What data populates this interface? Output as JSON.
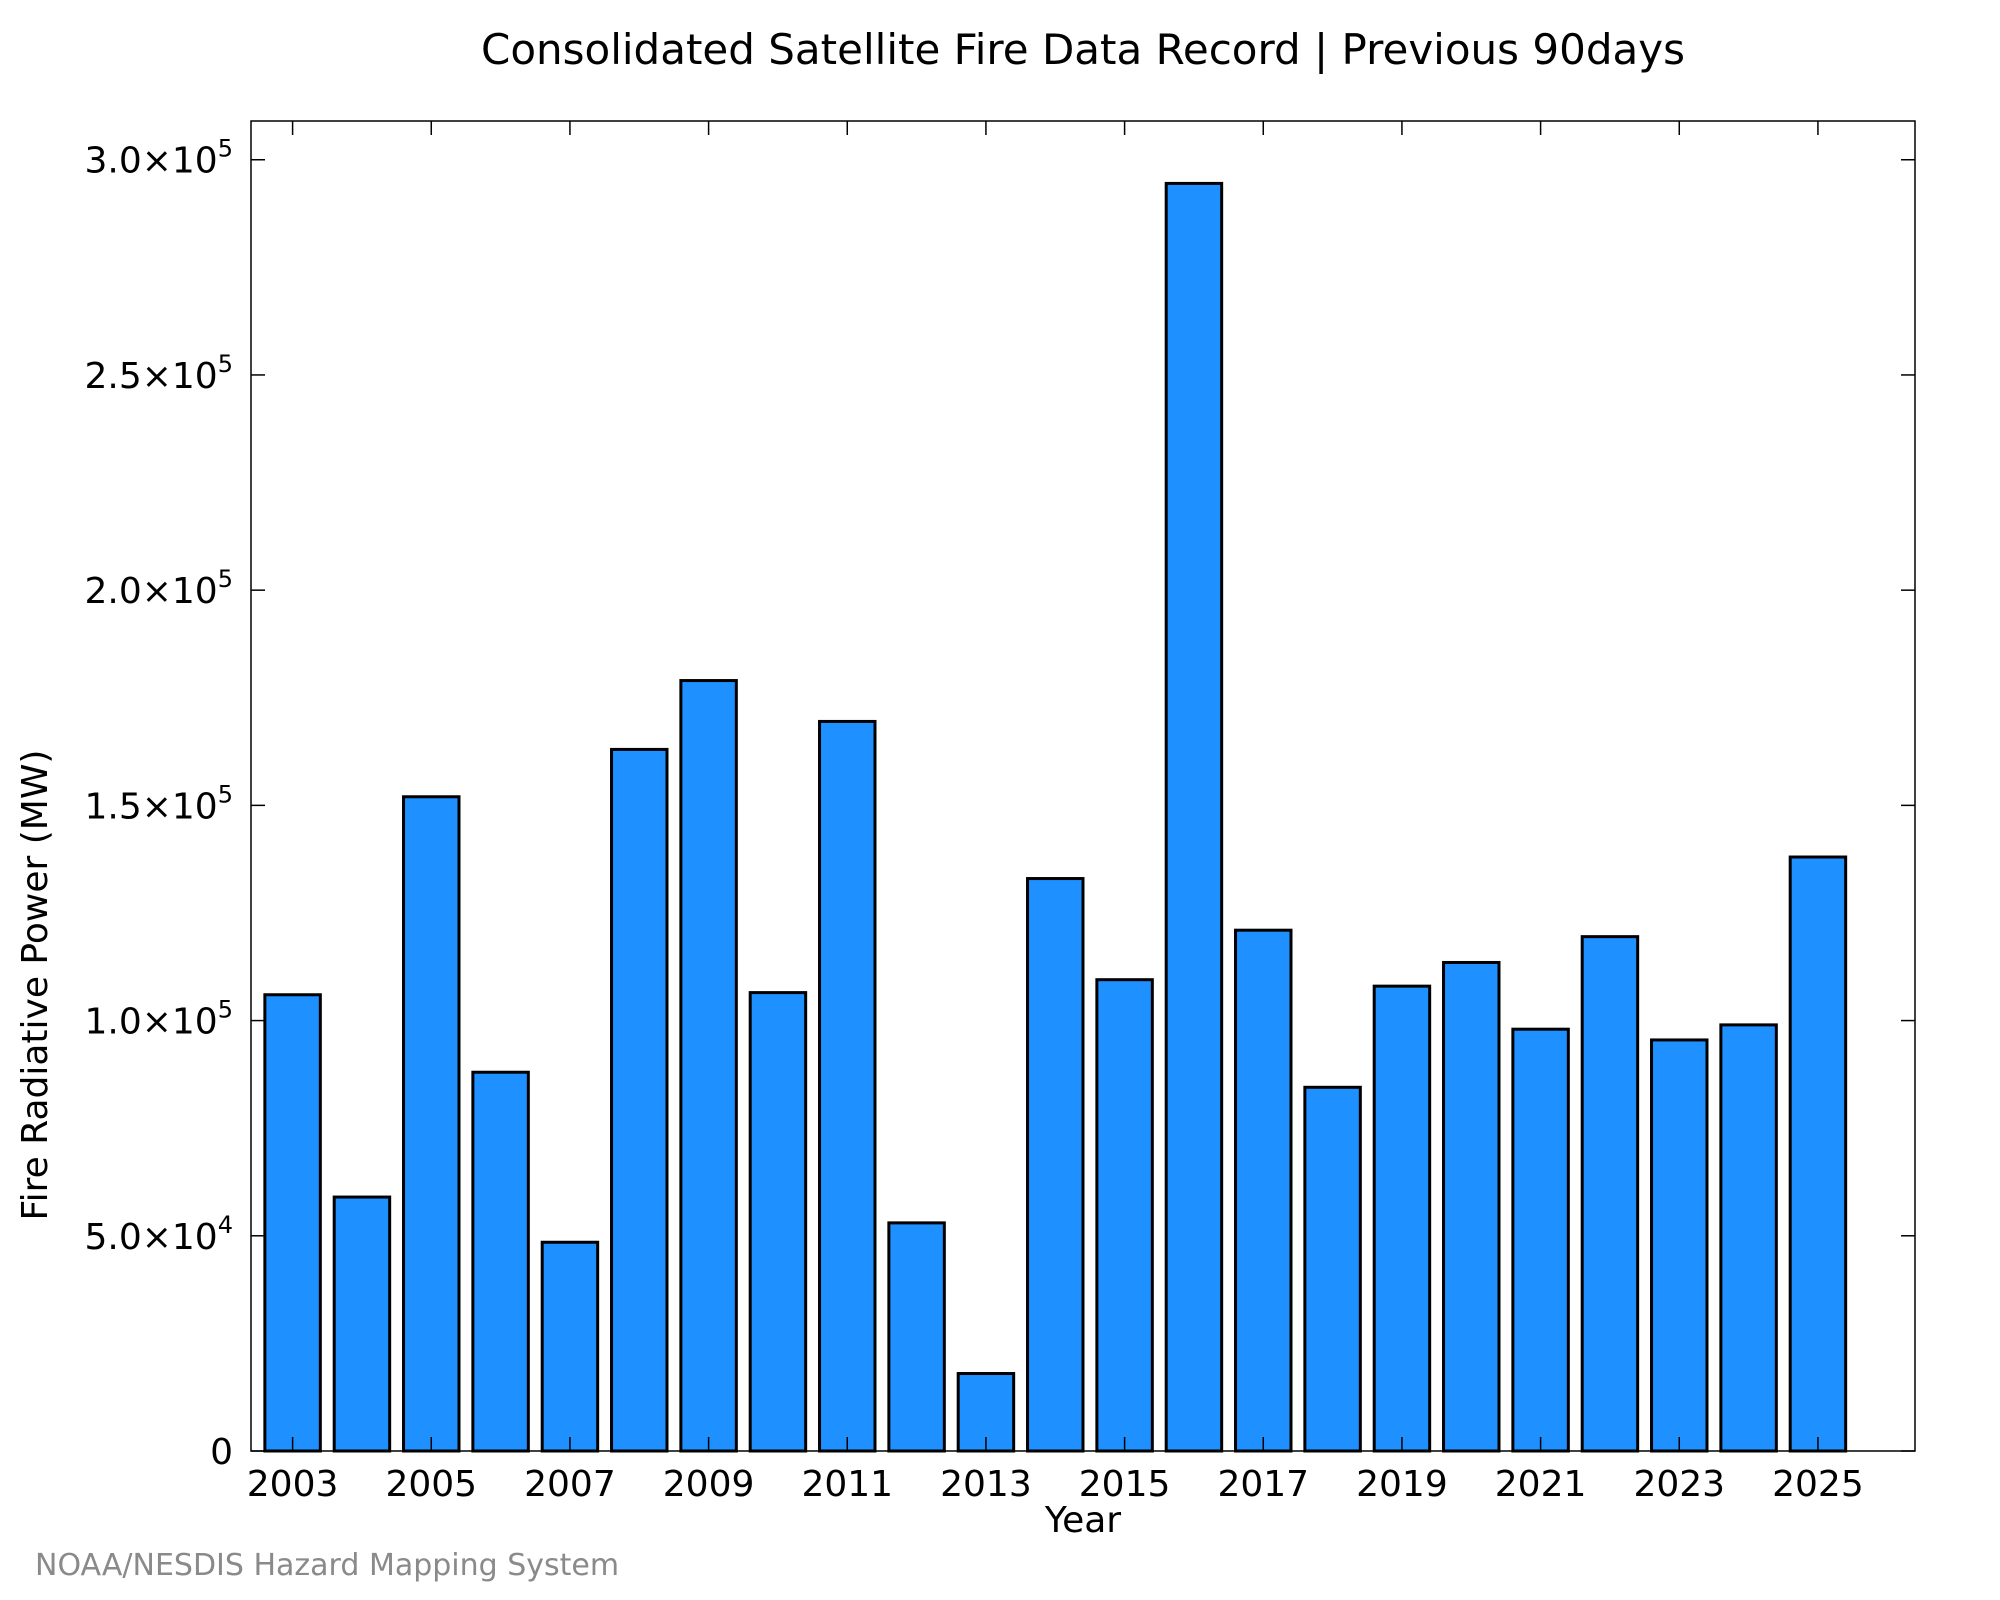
{
  "chart_data": {
    "type": "bar",
    "title": "Consolidated Satellite Fire Data Record | Previous 90days",
    "xlabel": "Year",
    "ylabel": "Fire Radiative Power (MW)",
    "credit": "NOAA/NESDIS Hazard Mapping System",
    "bar_color": "#1e90ff",
    "categories": [
      "2003",
      "2004",
      "2005",
      "2006",
      "2007",
      "2008",
      "2009",
      "2010",
      "2011",
      "2012",
      "2013",
      "2014",
      "2015",
      "2016",
      "2017",
      "2018",
      "2019",
      "2020",
      "2021",
      "2022",
      "2023",
      "2024",
      "2025"
    ],
    "values": [
      106000,
      59000,
      152000,
      88000,
      48500,
      163000,
      179000,
      106500,
      169500,
      53000,
      18000,
      133000,
      109500,
      294500,
      121000,
      84500,
      108000,
      113500,
      98000,
      119500,
      95500,
      99000,
      138000
    ],
    "xlim": [
      2002.4,
      2026.4
    ],
    "ylim": [
      0,
      309000
    ],
    "x_ticks": [
      {
        "value": 2003,
        "label": "2003"
      },
      {
        "value": 2005,
        "label": "2005"
      },
      {
        "value": 2007,
        "label": "2007"
      },
      {
        "value": 2009,
        "label": "2009"
      },
      {
        "value": 2011,
        "label": "2011"
      },
      {
        "value": 2013,
        "label": "2013"
      },
      {
        "value": 2015,
        "label": "2015"
      },
      {
        "value": 2017,
        "label": "2017"
      },
      {
        "value": 2019,
        "label": "2019"
      },
      {
        "value": 2021,
        "label": "2021"
      },
      {
        "value": 2023,
        "label": "2023"
      },
      {
        "value": 2025,
        "label": "2025"
      }
    ],
    "y_ticks": [
      {
        "value": 0,
        "mantissa": "0",
        "exponent": ""
      },
      {
        "value": 50000,
        "mantissa": "5.0×10",
        "exponent": "4"
      },
      {
        "value": 100000,
        "mantissa": "1.0×10",
        "exponent": "5"
      },
      {
        "value": 150000,
        "mantissa": "1.5×10",
        "exponent": "5"
      },
      {
        "value": 200000,
        "mantissa": "2.0×10",
        "exponent": "5"
      },
      {
        "value": 250000,
        "mantissa": "2.5×10",
        "exponent": "5"
      },
      {
        "value": 300000,
        "mantissa": "3.0×10",
        "exponent": "5"
      }
    ],
    "legend": "none",
    "grid": false
  }
}
